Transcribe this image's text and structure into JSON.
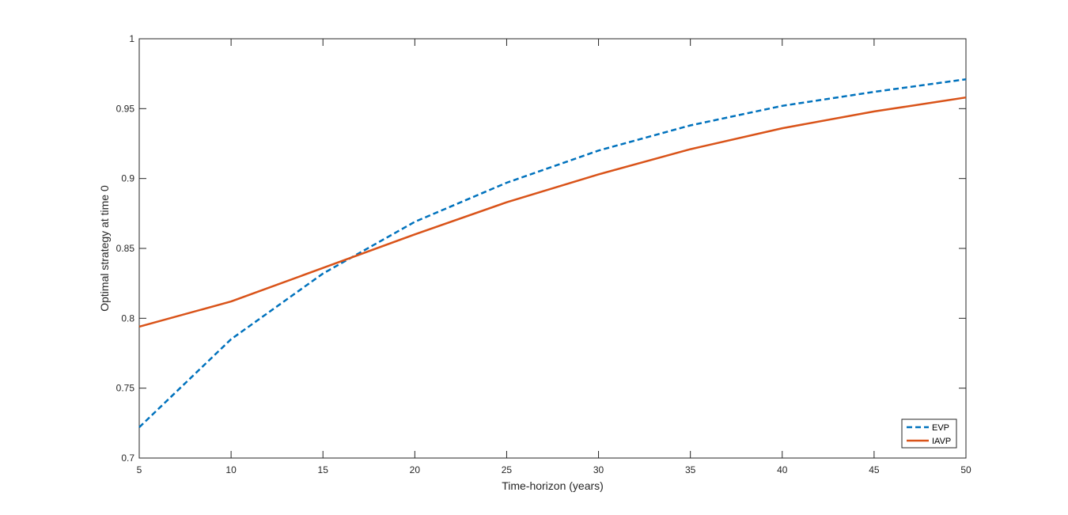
{
  "chart_data": {
    "type": "line",
    "title": "",
    "xlabel": "Time-horizon (years)",
    "ylabel": "Optimal strategy at time 0",
    "xlim": [
      5,
      50
    ],
    "ylim": [
      0.7,
      1
    ],
    "xticks": [
      5,
      10,
      15,
      20,
      25,
      30,
      35,
      40,
      45,
      50
    ],
    "yticks": [
      0.7,
      0.75,
      0.8,
      0.85,
      0.9,
      0.95,
      1
    ],
    "xtick_labels": [
      "5",
      "10",
      "15",
      "20",
      "25",
      "30",
      "35",
      "40",
      "45",
      "50"
    ],
    "ytick_labels": [
      "0.7",
      "0.75",
      "0.8",
      "0.85",
      "0.9",
      "0.95",
      "1"
    ],
    "grid": false,
    "legend_position": "bottom-right",
    "x": [
      5,
      10,
      15,
      20,
      25,
      30,
      35,
      40,
      45,
      50
    ],
    "series": [
      {
        "name": "EVP",
        "color": "#0072BD",
        "style": "dashed",
        "values": [
          0.722,
          0.785,
          0.832,
          0.869,
          0.897,
          0.92,
          0.938,
          0.952,
          0.962,
          0.971
        ]
      },
      {
        "name": "IAVP",
        "color": "#D95319",
        "style": "solid",
        "values": [
          0.794,
          0.812,
          0.836,
          0.86,
          0.883,
          0.903,
          0.921,
          0.936,
          0.948,
          0.958
        ]
      }
    ]
  }
}
